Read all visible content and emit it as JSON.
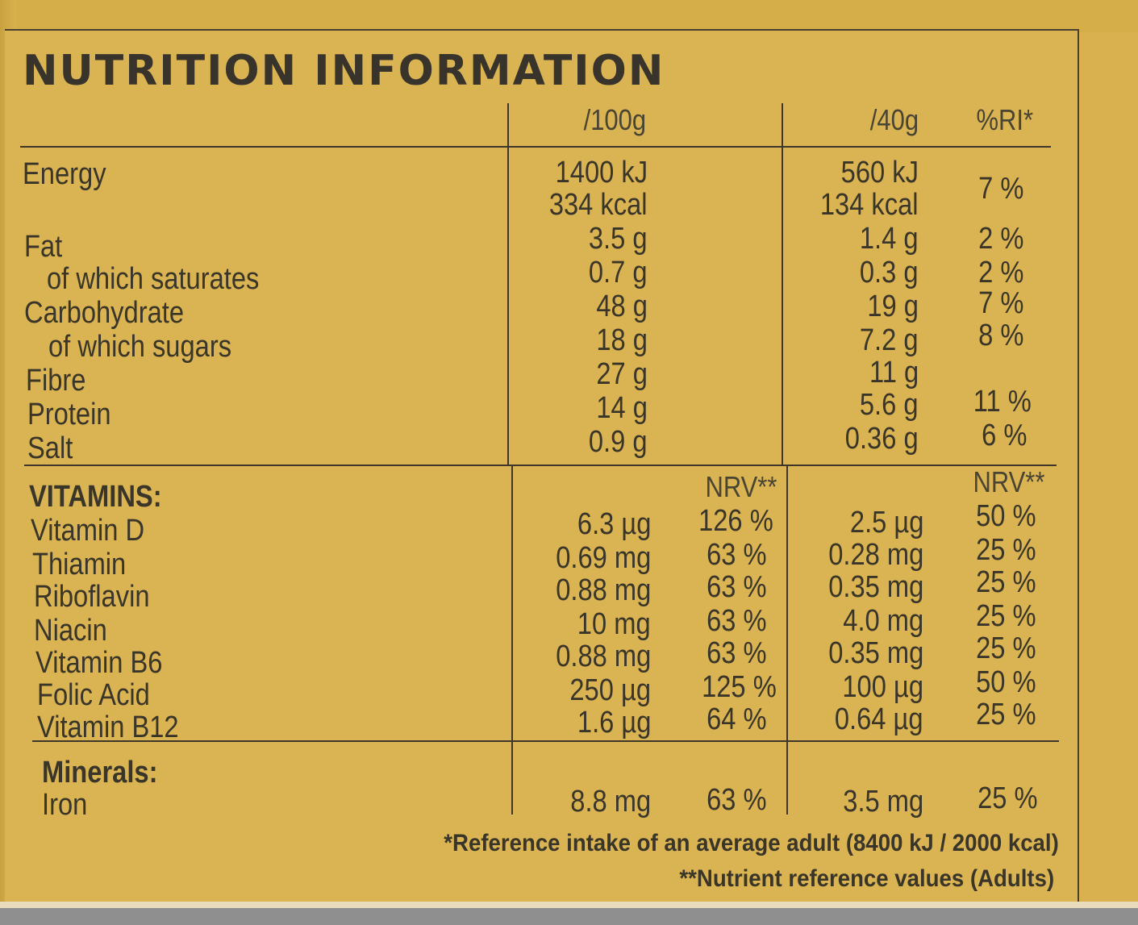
{
  "title": "NUTRITION INFORMATION",
  "headers": {
    "per100": "/100g",
    "perServing": "/40g",
    "ri": "%RI*",
    "nrv": "NRV**"
  },
  "energy": {
    "label": "Energy",
    "kj100": "1400 kJ",
    "kcal100": "334 kcal",
    "kjServing": "560 kJ",
    "kcalServing": "134 kcal",
    "ri": "7 %"
  },
  "nutrients": [
    {
      "label": "Fat",
      "per100": "3.5 g",
      "serving": "1.4 g",
      "ri": "2 %"
    },
    {
      "label": "of which saturates",
      "per100": "0.7 g",
      "serving": "0.3 g",
      "ri": "2 %"
    },
    {
      "label": "Carbohydrate",
      "per100": "48 g",
      "serving": "19 g",
      "ri": "7 %"
    },
    {
      "label": "of which sugars",
      "per100": "18 g",
      "serving": "7.2 g",
      "ri": "8 %"
    },
    {
      "label": "Fibre",
      "per100": "27 g",
      "serving": "11 g",
      "ri": ""
    },
    {
      "label": "Protein",
      "per100": "14 g",
      "serving": "5.6 g",
      "ri": "11 %"
    },
    {
      "label": "Salt",
      "per100": "0.9 g",
      "serving": "0.36 g",
      "ri": "6 %"
    }
  ],
  "vitamins_heading": "VITAMINS:",
  "vitamins": [
    {
      "label": "Vitamin D",
      "per100": "6.3 µg",
      "nrv100": "126 %",
      "serving": "2.5 µg",
      "nrvServing": "50 %"
    },
    {
      "label": "Thiamin",
      "per100": "0.69 mg",
      "nrv100": "63 %",
      "serving": "0.28 mg",
      "nrvServing": "25 %"
    },
    {
      "label": "Riboflavin",
      "per100": "0.88 mg",
      "nrv100": "63 %",
      "serving": "0.35 mg",
      "nrvServing": "25 %"
    },
    {
      "label": "Niacin",
      "per100": "10 mg",
      "nrv100": "63 %",
      "serving": "4.0 mg",
      "nrvServing": "25 %"
    },
    {
      "label": "Vitamin B6",
      "per100": "0.88 mg",
      "nrv100": "63 %",
      "serving": "0.35 mg",
      "nrvServing": "25 %"
    },
    {
      "label": "Folic Acid",
      "per100": "250 µg",
      "nrv100": "125 %",
      "serving": "100 µg",
      "nrvServing": "50 %"
    },
    {
      "label": "Vitamin B12",
      "per100": "1.6 µg",
      "nrv100": "64 %",
      "serving": "0.64 µg",
      "nrvServing": "25 %"
    }
  ],
  "minerals_heading": "Minerals:",
  "minerals": [
    {
      "label": "Iron",
      "per100": "8.8 mg",
      "nrv100": "63 %",
      "serving": "3.5 mg",
      "nrvServing": "25 %"
    }
  ],
  "footnotes": {
    "ri": "*Reference intake of an average adult (8400 kJ / 2000 kcal)",
    "nrv": "**Nutrient reference values (Adults)"
  }
}
